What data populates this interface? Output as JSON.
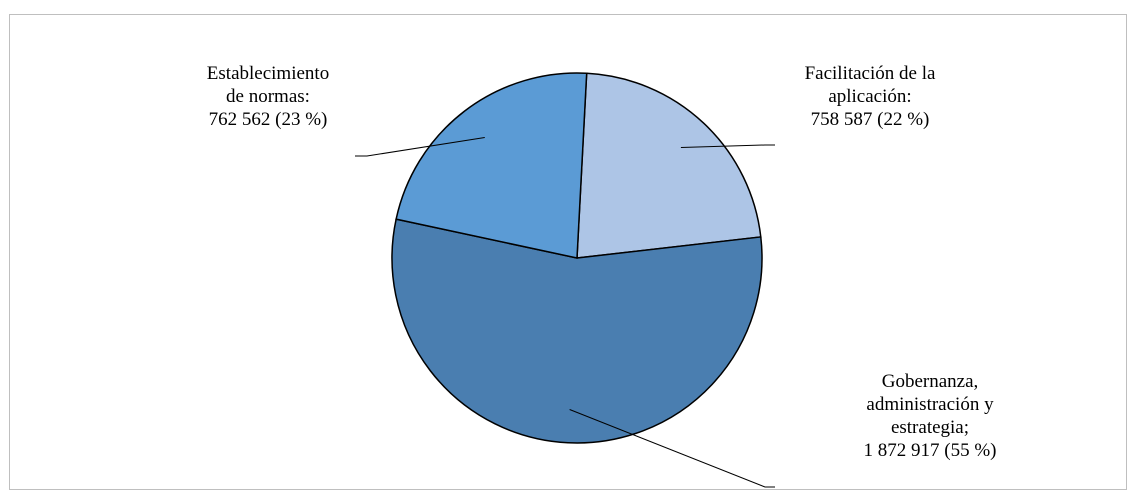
{
  "chart_data": {
    "type": "pie",
    "slices": [
      {
        "label_lines": [
          "Facilitación de la",
          "aplicación:",
          "758 587  (22 %)"
        ],
        "value": 758587,
        "percent": 22,
        "color": "#adc5e6"
      },
      {
        "label_lines": [
          "Gobernanza,",
          "administración y",
          "estrategia;",
          "1 872 917  (55 %)"
        ],
        "value": 1872917,
        "percent": 55,
        "color": "#4a7eb0"
      },
      {
        "label_lines": [
          "Establecimiento",
          "de normas:",
          "762 562  (23 %)"
        ],
        "value": 762562,
        "percent": 23,
        "color": "#5b9bd5"
      }
    ],
    "start_angle_deg": 3,
    "legend": "none"
  }
}
